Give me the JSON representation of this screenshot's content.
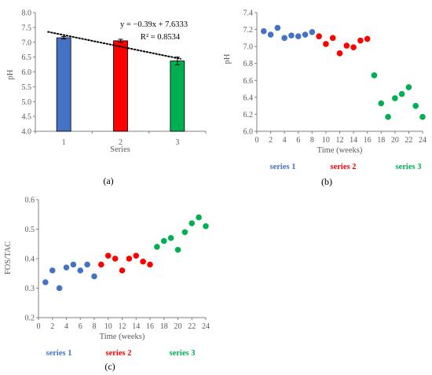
{
  "chart_data": [
    {
      "type": "bar",
      "panel_label": "(a)",
      "categories": [
        "1",
        "2",
        "3"
      ],
      "values": [
        7.15,
        7.05,
        6.37
      ],
      "error": [
        0.04,
        0.05,
        0.13
      ],
      "colors": [
        "#4472C4",
        "#FF0000",
        "#00B050"
      ],
      "xlabel": "Series",
      "ylabel": "pH",
      "ylim": [
        4.0,
        8.0
      ],
      "yticks": [
        "4.0",
        "4.5",
        "5.0",
        "5.5",
        "6.0",
        "6.5",
        "7.0",
        "7.5",
        "8.0"
      ],
      "trendline": {
        "equation": "y = −0.39x + 7.6333",
        "r2": "R² = 0.8534",
        "slope": -0.39,
        "intercept": 7.6333
      },
      "grid": false,
      "legend": "none"
    },
    {
      "type": "scatter",
      "panel_label": "(b)",
      "xlabel": "Time (weeks)",
      "ylabel": "pH",
      "xlim": [
        0,
        24
      ],
      "ylim": [
        6.0,
        7.4
      ],
      "xticks": [
        "0",
        "2",
        "4",
        "6",
        "8",
        "10",
        "12",
        "14",
        "16",
        "18",
        "20",
        "22",
        "24"
      ],
      "yticks": [
        "6.0",
        "6.2",
        "6.4",
        "6.6",
        "6.8",
        "7.0",
        "7.2",
        "7.4"
      ],
      "grid": false,
      "legend": "bottom",
      "series": [
        {
          "name": "series 1",
          "color": "#4472C4",
          "x": [
            1,
            2,
            3,
            4,
            5,
            6,
            7,
            8
          ],
          "y": [
            7.18,
            7.14,
            7.22,
            7.1,
            7.13,
            7.12,
            7.14,
            7.17
          ]
        },
        {
          "name": "series 2",
          "color": "#FF0000",
          "x": [
            9,
            10,
            11,
            12,
            13,
            14,
            15,
            16
          ],
          "y": [
            7.12,
            7.03,
            7.1,
            6.92,
            7.01,
            6.99,
            7.07,
            7.09
          ]
        },
        {
          "name": "series 3",
          "color": "#00B050",
          "x": [
            17,
            18,
            19,
            20,
            21,
            22,
            23,
            24
          ],
          "y": [
            6.66,
            6.33,
            6.17,
            6.39,
            6.44,
            6.52,
            6.3,
            6.17
          ]
        }
      ]
    },
    {
      "type": "scatter",
      "panel_label": "(c)",
      "xlabel": "Time (weeks)",
      "ylabel": "FOS/TAC",
      "xlim": [
        0,
        24
      ],
      "ylim": [
        0.2,
        0.6
      ],
      "xticks": [
        "0",
        "2",
        "4",
        "6",
        "8",
        "10",
        "12",
        "14",
        "16",
        "18",
        "20",
        "22",
        "24"
      ],
      "yticks": [
        "0.2",
        "0.3",
        "0.4",
        "0.5",
        "0.6"
      ],
      "grid": false,
      "legend": "bottom",
      "series": [
        {
          "name": "series 1",
          "color": "#4472C4",
          "x": [
            1,
            2,
            3,
            4,
            5,
            6,
            7,
            8
          ],
          "y": [
            0.32,
            0.36,
            0.3,
            0.37,
            0.38,
            0.36,
            0.38,
            0.34
          ]
        },
        {
          "name": "series 2",
          "color": "#FF0000",
          "x": [
            9,
            10,
            11,
            12,
            13,
            14,
            15,
            16
          ],
          "y": [
            0.38,
            0.41,
            0.4,
            0.36,
            0.4,
            0.41,
            0.39,
            0.38
          ]
        },
        {
          "name": "series 3",
          "color": "#00B050",
          "x": [
            17,
            18,
            19,
            20,
            21,
            22,
            23,
            24
          ],
          "y": [
            0.44,
            0.46,
            0.47,
            0.43,
            0.49,
            0.52,
            0.54,
            0.51
          ]
        }
      ]
    }
  ]
}
